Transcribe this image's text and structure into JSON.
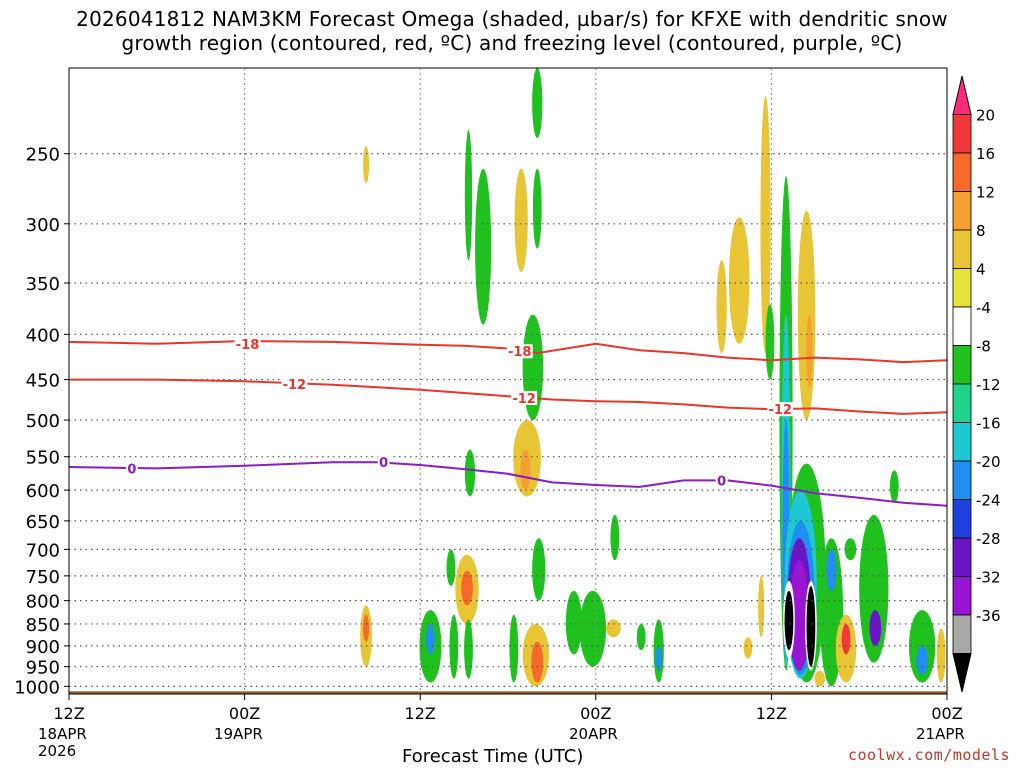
{
  "title": {
    "line1": "2026041812 NAM3KM Forecast Omega (shaded, µbar/s) for KFXE with dendritic snow",
    "line2": "growth region (contoured, red, ºC) and freezing level (contoured, purple, ºC)"
  },
  "x_axis": {
    "title": "Forecast Time (UTC)",
    "ticks": [
      "12Z",
      "00Z",
      "12Z",
      "00Z",
      "12Z",
      "00Z"
    ],
    "date_labels": [
      {
        "text": "18APR",
        "sub": "2026"
      },
      {
        "text": "19APR"
      },
      {
        "text": "20APR"
      },
      {
        "text": "21APR"
      }
    ]
  },
  "credit": "coolwx.com/models",
  "colors": {
    "contour_dgz": "#e8352d",
    "contour_freezing": "#8a1cc4",
    "terrain": "#9a5a2e"
  },
  "chart_data": {
    "type": "heatmap",
    "xlabel": "Forecast Time (UTC)",
    "ylabel": "",
    "y_scale": "log-pressure (hPa, inverted)",
    "x_range_hours": [
      0,
      60
    ],
    "x_ticks_hours": [
      0,
      12,
      24,
      36,
      48,
      60
    ],
    "y_ticks": [
      250,
      300,
      350,
      400,
      450,
      500,
      550,
      600,
      650,
      700,
      750,
      800,
      850,
      900,
      950,
      1000
    ],
    "y_range": [
      200,
      1020
    ],
    "grid": true,
    "colorbar": {
      "labels": [
        20,
        16,
        12,
        8,
        4,
        -4,
        -8,
        -12,
        -16,
        -20,
        -24,
        -28,
        -32,
        -36
      ],
      "colors": [
        "#ff2a7a",
        "#f2383a",
        "#f56a2a",
        "#f5a030",
        "#e8c535",
        "#e5e33a",
        "#ffffff",
        "#1fc11f",
        "#1fd38a",
        "#1ec8d2",
        "#1f8ff0",
        "#1f40e0",
        "#6a14c8",
        "#9a14d4",
        "#a8a8a8",
        "#000000"
      ]
    },
    "contours": [
      {
        "name": "-18",
        "color": "#e8352d",
        "x": [
          0,
          6,
          12,
          18,
          24,
          27,
          30,
          32,
          36,
          39,
          42,
          45,
          48,
          51,
          54,
          57,
          60
        ],
        "y": [
          408,
          410,
          407,
          408,
          411,
          412,
          415,
          420,
          410,
          417,
          420,
          425,
          428,
          425,
          427,
          430,
          428
        ]
      },
      {
        "name": "-12",
        "color": "#e8352d",
        "x": [
          0,
          6,
          12,
          18,
          24,
          27,
          30,
          33,
          36,
          39,
          42,
          45,
          48,
          51,
          54,
          57,
          60
        ],
        "y": [
          450,
          450,
          452,
          456,
          462,
          466,
          470,
          474,
          476,
          477,
          480,
          484,
          486,
          485,
          489,
          492,
          490
        ]
      },
      {
        "name": "0",
        "color": "#8a1cc4",
        "x": [
          0,
          6,
          12,
          18,
          21,
          24,
          27,
          30,
          33,
          36,
          39,
          42,
          45,
          48,
          51,
          54,
          57,
          60
        ],
        "y": [
          565,
          567,
          563,
          558,
          558,
          562,
          568,
          575,
          588,
          592,
          595,
          585,
          585,
          593,
          605,
          612,
          620,
          625
        ]
      }
    ],
    "contour_labels": [
      {
        "text": "-18",
        "x": 12.2,
        "y": 410
      },
      {
        "text": "-18",
        "x": 30.8,
        "y": 418
      },
      {
        "text": "-12",
        "x": 15.4,
        "y": 455
      },
      {
        "text": "-12",
        "x": 31.1,
        "y": 472
      },
      {
        "text": "-12",
        "x": 48.6,
        "y": 486
      },
      {
        "text": "0",
        "x": 4.3,
        "y": 567
      },
      {
        "text": "0",
        "x": 21.5,
        "y": 558
      },
      {
        "text": "0",
        "x": 44.6,
        "y": 585
      }
    ],
    "omega_blobs": [
      {
        "x": 27.3,
        "p_top": 235,
        "p_bot": 330,
        "w": 0.25,
        "c": "#1fc11f"
      },
      {
        "x": 28.3,
        "p_top": 260,
        "p_bot": 390,
        "w": 0.55,
        "c": "#1fc11f"
      },
      {
        "x": 30.9,
        "p_top": 260,
        "p_bot": 340,
        "w": 0.45,
        "c": "#e8c535"
      },
      {
        "x": 32.0,
        "p_top": 200,
        "p_bot": 240,
        "w": 0.35,
        "c": "#1fc11f"
      },
      {
        "x": 32.0,
        "p_top": 260,
        "p_bot": 320,
        "w": 0.3,
        "c": "#1fc11f"
      },
      {
        "x": 31.7,
        "p_top": 380,
        "p_bot": 500,
        "w": 0.7,
        "c": "#1fc11f"
      },
      {
        "x": 31.3,
        "p_top": 500,
        "p_bot": 610,
        "w": 0.95,
        "c": "#e8c535"
      },
      {
        "x": 31.2,
        "p_top": 540,
        "p_bot": 600,
        "w": 0.35,
        "c": "#f5a030"
      },
      {
        "x": 27.4,
        "p_top": 540,
        "p_bot": 610,
        "w": 0.35,
        "c": "#1fc11f"
      },
      {
        "x": 26.1,
        "p_top": 700,
        "p_bot": 770,
        "w": 0.3,
        "c": "#1fc11f"
      },
      {
        "x": 27.2,
        "p_top": 710,
        "p_bot": 850,
        "w": 0.8,
        "c": "#e8c535"
      },
      {
        "x": 27.2,
        "p_top": 740,
        "p_bot": 810,
        "w": 0.4,
        "c": "#f56a2a"
      },
      {
        "x": 27.3,
        "p_top": 840,
        "p_bot": 980,
        "w": 0.3,
        "c": "#1fc11f"
      },
      {
        "x": 26.3,
        "p_top": 830,
        "p_bot": 980,
        "w": 0.3,
        "c": "#1fc11f"
      },
      {
        "x": 24.7,
        "p_top": 820,
        "p_bot": 990,
        "w": 0.75,
        "c": "#1fc11f"
      },
      {
        "x": 24.7,
        "p_top": 850,
        "p_bot": 920,
        "w": 0.3,
        "c": "#1f8ff0"
      },
      {
        "x": 20.3,
        "p_top": 810,
        "p_bot": 950,
        "w": 0.4,
        "c": "#e8c535"
      },
      {
        "x": 20.3,
        "p_top": 830,
        "p_bot": 890,
        "w": 0.2,
        "c": "#f56a2a"
      },
      {
        "x": 20.3,
        "p_top": 245,
        "p_bot": 270,
        "w": 0.15,
        "c": "#e8c535"
      },
      {
        "x": 32.1,
        "p_top": 680,
        "p_bot": 800,
        "w": 0.45,
        "c": "#1fc11f"
      },
      {
        "x": 31.9,
        "p_top": 850,
        "p_bot": 1000,
        "w": 0.9,
        "c": "#e8c535"
      },
      {
        "x": 32.0,
        "p_top": 890,
        "p_bot": 990,
        "w": 0.4,
        "c": "#f56a2a"
      },
      {
        "x": 30.4,
        "p_top": 830,
        "p_bot": 990,
        "w": 0.3,
        "c": "#1fc11f"
      },
      {
        "x": 34.5,
        "p_top": 780,
        "p_bot": 920,
        "w": 0.55,
        "c": "#1fc11f"
      },
      {
        "x": 35.8,
        "p_top": 780,
        "p_bot": 950,
        "w": 0.9,
        "c": "#1fc11f"
      },
      {
        "x": 37.2,
        "p_top": 840,
        "p_bot": 880,
        "w": 0.5,
        "c": "#e8c535"
      },
      {
        "x": 37.3,
        "p_top": 640,
        "p_bot": 720,
        "w": 0.3,
        "c": "#1fc11f"
      },
      {
        "x": 39.1,
        "p_top": 850,
        "p_bot": 910,
        "w": 0.3,
        "c": "#1fc11f"
      },
      {
        "x": 40.3,
        "p_top": 840,
        "p_bot": 990,
        "w": 0.35,
        "c": "#1fc11f"
      },
      {
        "x": 40.3,
        "p_top": 900,
        "p_bot": 960,
        "w": 0.2,
        "c": "#1f8ff0"
      },
      {
        "x": 45.8,
        "p_top": 295,
        "p_bot": 410,
        "w": 0.7,
        "c": "#e8c535"
      },
      {
        "x": 44.6,
        "p_top": 330,
        "p_bot": 420,
        "w": 0.35,
        "c": "#e8c535"
      },
      {
        "x": 47.6,
        "p_top": 215,
        "p_bot": 420,
        "w": 0.35,
        "c": "#e8c535"
      },
      {
        "x": 47.9,
        "p_top": 370,
        "p_bot": 450,
        "w": 0.3,
        "c": "#1fc11f"
      },
      {
        "x": 49.0,
        "p_top": 265,
        "p_bot": 960,
        "w": 0.45,
        "c": "#1fc11f"
      },
      {
        "x": 49.0,
        "p_top": 380,
        "p_bot": 950,
        "w": 0.3,
        "c": "#1ec8d2"
      },
      {
        "x": 49.0,
        "p_top": 500,
        "p_bot": 930,
        "w": 0.25,
        "c": "#1f8ff0"
      },
      {
        "x": 50.4,
        "p_top": 290,
        "p_bot": 500,
        "w": 0.6,
        "c": "#e8c535"
      },
      {
        "x": 50.6,
        "p_top": 380,
        "p_bot": 460,
        "w": 0.2,
        "c": "#f5a030"
      },
      {
        "x": 50.4,
        "p_top": 560,
        "p_bot": 990,
        "w": 1.3,
        "c": "#1fc11f"
      },
      {
        "x": 50.0,
        "p_top": 600,
        "p_bot": 980,
        "w": 1.1,
        "c": "#1ec8d2"
      },
      {
        "x": 50.0,
        "p_top": 650,
        "p_bot": 970,
        "w": 0.95,
        "c": "#1f8ff0"
      },
      {
        "x": 49.9,
        "p_top": 680,
        "p_bot": 960,
        "w": 0.8,
        "c": "#6a14c8"
      },
      {
        "x": 49.9,
        "p_top": 720,
        "p_bot": 960,
        "w": 0.65,
        "c": "#9a14d4"
      },
      {
        "x": 49.2,
        "p_top": 760,
        "p_bot": 930,
        "w": 0.4,
        "c": "#ffffff"
      },
      {
        "x": 49.2,
        "p_top": 780,
        "p_bot": 910,
        "w": 0.3,
        "c": "#000000"
      },
      {
        "x": 50.7,
        "p_top": 760,
        "p_bot": 960,
        "w": 0.4,
        "c": "#ffffff"
      },
      {
        "x": 50.7,
        "p_top": 770,
        "p_bot": 950,
        "w": 0.3,
        "c": "#000000"
      },
      {
        "x": 51.3,
        "p_top": 960,
        "p_bot": 1000,
        "w": 0.35,
        "c": "#e8c535"
      },
      {
        "x": 52.1,
        "p_top": 680,
        "p_bot": 1000,
        "w": 0.8,
        "c": "#1fc11f"
      },
      {
        "x": 52.1,
        "p_top": 700,
        "p_bot": 780,
        "w": 0.35,
        "c": "#1f8ff0"
      },
      {
        "x": 53.1,
        "p_top": 830,
        "p_bot": 990,
        "w": 0.7,
        "c": "#e8c535"
      },
      {
        "x": 53.1,
        "p_top": 850,
        "p_bot": 920,
        "w": 0.3,
        "c": "#f2383a"
      },
      {
        "x": 55.0,
        "p_top": 640,
        "p_bot": 940,
        "w": 1.0,
        "c": "#1fc11f"
      },
      {
        "x": 55.1,
        "p_top": 820,
        "p_bot": 900,
        "w": 0.4,
        "c": "#6a14c8"
      },
      {
        "x": 58.3,
        "p_top": 820,
        "p_bot": 990,
        "w": 0.9,
        "c": "#1fc11f"
      },
      {
        "x": 58.3,
        "p_top": 900,
        "p_bot": 970,
        "w": 0.4,
        "c": "#1f8ff0"
      },
      {
        "x": 59.6,
        "p_top": 860,
        "p_bot": 990,
        "w": 0.3,
        "c": "#e8c535"
      },
      {
        "x": 53.4,
        "p_top": 680,
        "p_bot": 720,
        "w": 0.4,
        "c": "#1fc11f"
      },
      {
        "x": 56.4,
        "p_top": 570,
        "p_bot": 620,
        "w": 0.3,
        "c": "#1fc11f"
      },
      {
        "x": 47.3,
        "p_top": 750,
        "p_bot": 880,
        "w": 0.2,
        "c": "#e8c535"
      },
      {
        "x": 46.4,
        "p_top": 880,
        "p_bot": 930,
        "w": 0.3,
        "c": "#e8c535"
      }
    ],
    "terrain_top_hpa": 1013
  }
}
